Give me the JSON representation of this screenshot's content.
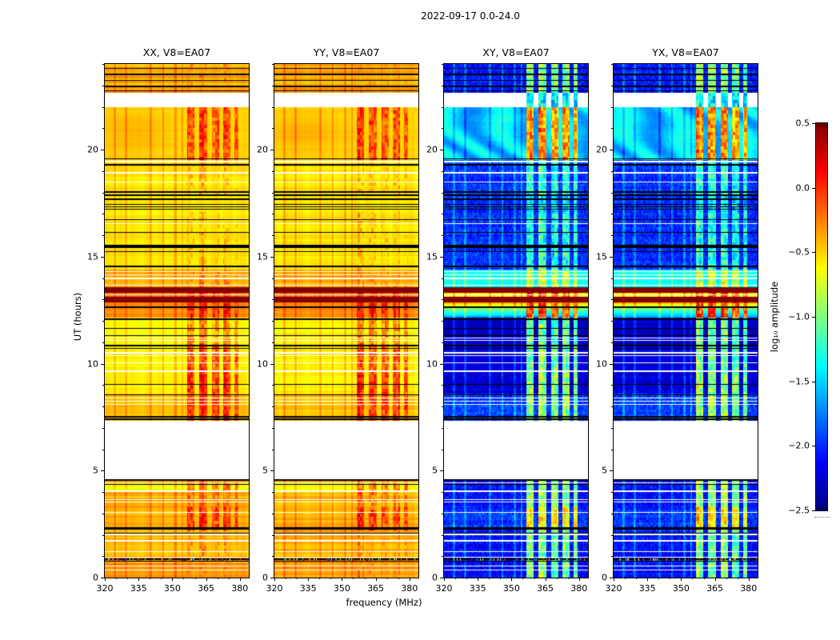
{
  "chart_data": {
    "type": "heatmap",
    "title": "2022-09-17 0.0-24.0",
    "xlabel": "frequency (MHz)",
    "ylabel": "UT (hours)",
    "x_range": [
      320,
      384
    ],
    "y_range": [
      0,
      24
    ],
    "x_ticks": [
      320,
      335,
      350,
      365,
      380
    ],
    "x_minor_step": 5,
    "y_ticks": [
      0,
      5,
      10,
      15,
      20
    ],
    "y_minor_step": 1,
    "grid": false,
    "panels": [
      {
        "label": "XX, V8=EA07",
        "pol": "XX",
        "kind": "warm"
      },
      {
        "label": "YY, V8=EA07",
        "pol": "YY",
        "kind": "warm"
      },
      {
        "label": "XY, V8=EA07",
        "pol": "XY",
        "kind": "cool"
      },
      {
        "label": "YX, V8=EA07",
        "pol": "YX",
        "kind": "cool"
      }
    ],
    "colorbar": {
      "label": "log₁₀ amplitude",
      "ticks": [
        0.5,
        0.0,
        -0.5,
        -1.0,
        -1.5,
        -2.0,
        -2.5
      ],
      "vmin": -2.5,
      "vmax": 0.5,
      "colormap": "jet",
      "low_color": "#000080",
      "high_color": "#800000"
    },
    "features": {
      "data_gaps_ut": [
        [
          4.6,
          7.32
        ],
        [
          21.98,
          22.66
        ]
      ],
      "saturated_rows_ut": [
        [
          12.86,
          13.14
        ],
        [
          13.3,
          13.58
        ]
      ],
      "rfi_bands_mhz": [
        [
          356.5,
          359.8,
          1.0
        ],
        [
          361.8,
          365.5,
          0.95
        ],
        [
          367.5,
          370.8,
          0.85
        ],
        [
          372.8,
          375.8,
          0.8
        ],
        [
          377.6,
          379.2,
          0.6
        ]
      ],
      "weak_rfi_mhz": [
        324.5,
        329.5,
        340.5,
        346.0,
        351.5,
        354.5
      ],
      "flagged_black_rows_ut": [
        [
          23.8,
          0.06
        ],
        [
          23.52,
          0.05
        ],
        [
          23.24,
          0.05
        ],
        [
          22.95,
          0.08
        ],
        [
          22.75,
          0.04
        ],
        [
          19.56,
          0.05
        ],
        [
          19.3,
          0.06
        ],
        [
          18.02,
          0.05
        ],
        [
          17.87,
          0.04
        ],
        [
          17.68,
          0.1
        ],
        [
          17.44,
          0.04
        ],
        [
          17.32,
          0.04
        ],
        [
          17.2,
          0.04
        ],
        [
          16.72,
          0.05
        ],
        [
          16.14,
          0.05
        ],
        [
          15.46,
          0.15
        ],
        [
          15.24,
          0.05
        ],
        [
          14.54,
          0.06
        ],
        [
          12.64,
          0.05
        ],
        [
          12.08,
          0.05
        ],
        [
          11.64,
          0.05
        ],
        [
          11.32,
          0.05
        ],
        [
          10.84,
          0.05
        ],
        [
          10.7,
          0.04
        ],
        [
          9.04,
          0.05
        ],
        [
          8.54,
          0.06
        ],
        [
          7.5,
          0.07
        ],
        [
          7.4,
          0.05
        ],
        [
          4.55,
          0.06
        ],
        [
          4.34,
          0.04
        ],
        [
          2.3,
          0.08
        ],
        [
          2.08,
          0.04
        ],
        [
          0.86,
          0.06
        ],
        [
          0.76,
          0.05
        ]
      ],
      "flagged_white_rows_ut": [
        [
          19.44,
          0.05
        ],
        [
          18.92,
          0.05
        ],
        [
          18.5,
          0.04
        ],
        [
          16.54,
          0.05
        ],
        [
          14.3,
          0.05
        ],
        [
          14.14,
          0.05
        ],
        [
          13.98,
          0.06
        ],
        [
          13.66,
          0.04
        ],
        [
          13.22,
          0.05
        ],
        [
          11.2,
          0.04
        ],
        [
          11.08,
          0.04
        ],
        [
          10.5,
          0.05
        ],
        [
          10.38,
          0.04
        ],
        [
          10.04,
          0.05
        ],
        [
          9.64,
          0.05
        ],
        [
          8.4,
          0.05
        ],
        [
          8.24,
          0.04
        ],
        [
          8.1,
          0.05
        ],
        [
          4.44,
          0.04
        ],
        [
          4.04,
          0.05
        ],
        [
          3.64,
          0.04
        ],
        [
          3.52,
          0.04
        ],
        [
          3.04,
          0.05
        ],
        [
          2.02,
          0.04
        ],
        [
          1.72,
          0.04
        ],
        [
          1.22,
          0.04
        ],
        [
          0.94,
          0.04
        ],
        [
          0.54,
          0.04
        ],
        [
          0.36,
          0.04
        ]
      ],
      "background_levels": {
        "warm": [
          {
            "ut": [
              0,
              4.6
            ],
            "level": -0.4
          },
          {
            "ut": [
              7.32,
              8.6
            ],
            "level": -0.45
          },
          {
            "ut": [
              8.6,
              10.9
            ],
            "level": -0.6
          },
          {
            "ut": [
              10.9,
              12.15
            ],
            "level": -0.62
          },
          {
            "ut": [
              12.15,
              12.86
            ],
            "level": -0.3
          },
          {
            "ut": [
              13.14,
              13.3
            ],
            "level": -0.22
          },
          {
            "ut": [
              13.58,
              14.4
            ],
            "level": -0.4
          },
          {
            "ut": [
              14.4,
              19.5
            ],
            "level": -0.56
          },
          {
            "ut": [
              19.5,
              21.98
            ],
            "level": -0.5
          },
          {
            "ut": [
              22.66,
              24
            ],
            "level": -0.38
          }
        ],
        "cool": [
          {
            "ut": [
              0,
              4.6
            ],
            "level": -2.1
          },
          {
            "ut": [
              7.32,
              8.6
            ],
            "level": -1.95
          },
          {
            "ut": [
              8.6,
              10.9
            ],
            "level": -2.25
          },
          {
            "ut": [
              10.9,
              12.15
            ],
            "level": -2.3
          },
          {
            "ut": [
              12.15,
              12.86
            ],
            "level": -1.1
          },
          {
            "ut": [
              13.14,
              13.3
            ],
            "level": -0.6
          },
          {
            "ut": [
              13.58,
              14.4
            ],
            "level": -1.35
          },
          {
            "ut": [
              14.4,
              19.5
            ],
            "level": -2.0
          },
          {
            "ut": [
              19.5,
              21.98
            ],
            "level": -1.5
          },
          {
            "ut": [
              22.66,
              24
            ],
            "level": -2.05
          }
        ]
      },
      "rfi_levels": {
        "warm": [
          {
            "ut": [
              0,
              2.2
            ],
            "peak": 0.0
          },
          {
            "ut": [
              2.2,
              3.3
            ],
            "peak": 0.35
          },
          {
            "ut": [
              3.3,
              4.6
            ],
            "peak": 0.15
          },
          {
            "ut": [
              7.32,
              9.5
            ],
            "peak": 0.38
          },
          {
            "ut": [
              9.5,
              10.9
            ],
            "peak": 0.3
          },
          {
            "ut": [
              10.9,
              12.15
            ],
            "peak": 0.1
          },
          {
            "ut": [
              12.15,
              13.58
            ],
            "peak": 0.45
          },
          {
            "ut": [
              13.58,
              14.4
            ],
            "peak": 0.05
          },
          {
            "ut": [
              14.4,
              17.1
            ],
            "peak": -0.15
          },
          {
            "ut": [
              17.1,
              17.9
            ],
            "peak": -0.35
          },
          {
            "ut": [
              17.9,
              19.5
            ],
            "peak": -0.12
          },
          {
            "ut": [
              19.5,
              21.98
            ],
            "peak": 0.3
          },
          {
            "ut": [
              21.98,
              22.66
            ],
            "peak": -0.2
          },
          {
            "ut": [
              22.66,
              24
            ],
            "peak": -0.05
          }
        ],
        "cool": [
          {
            "ut": [
              0,
              2.2
            ],
            "peak": -0.55
          },
          {
            "ut": [
              2.2,
              3.3
            ],
            "peak": -0.12
          },
          {
            "ut": [
              3.3,
              4.6
            ],
            "peak": -0.45
          },
          {
            "ut": [
              7.32,
              9.5
            ],
            "peak": -0.45
          },
          {
            "ut": [
              9.5,
              10.9
            ],
            "peak": -0.55
          },
          {
            "ut": [
              10.9,
              12.15
            ],
            "peak": -0.6
          },
          {
            "ut": [
              12.15,
              13.58
            ],
            "peak": 0.4
          },
          {
            "ut": [
              13.58,
              14.4
            ],
            "peak": -0.3
          },
          {
            "ut": [
              14.4,
              17.1
            ],
            "peak": -0.8
          },
          {
            "ut": [
              17.1,
              17.9
            ],
            "peak": -0.95
          },
          {
            "ut": [
              17.9,
              19.5
            ],
            "peak": -0.75
          },
          {
            "ut": [
              19.5,
              21.98
            ],
            "peak": 0.18
          },
          {
            "ut": [
              21.98,
              22.66
            ],
            "peak": -0.9
          },
          {
            "ut": [
              22.66,
              24
            ],
            "peak": -0.5
          }
        ]
      }
    }
  }
}
